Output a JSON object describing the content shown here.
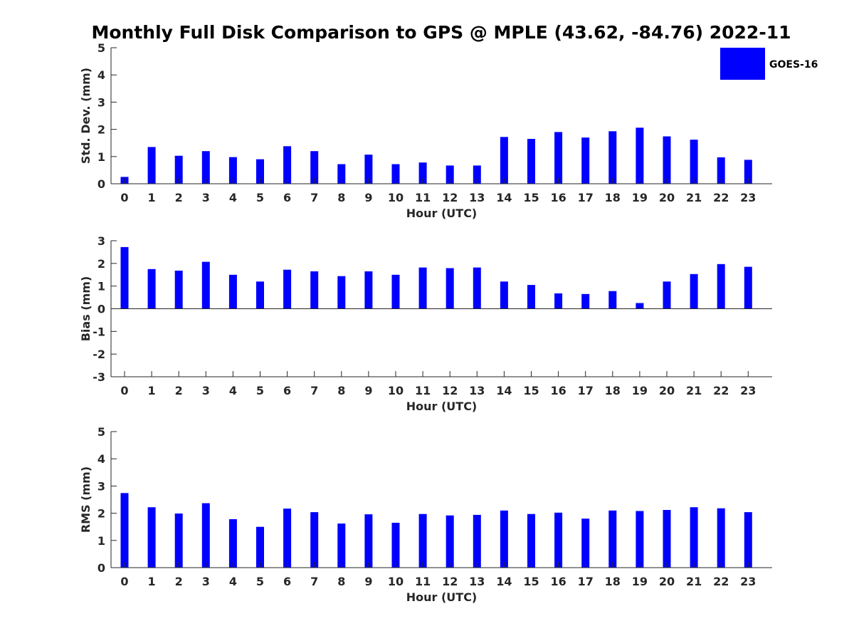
{
  "chart_data": {
    "type": "bar",
    "title": "Monthly Full Disk Comparison to GPS @ MPLE (43.62, -84.76) 2022-11",
    "legend": {
      "position": "top-right",
      "entries": [
        "GOES-16"
      ]
    },
    "colors": {
      "series": "#0000ff",
      "axis": "#262626",
      "text": "#262626"
    },
    "categories": [
      "0",
      "1",
      "2",
      "3",
      "4",
      "5",
      "6",
      "7",
      "8",
      "9",
      "10",
      "11",
      "12",
      "13",
      "14",
      "15",
      "16",
      "17",
      "18",
      "19",
      "20",
      "21",
      "22",
      "23"
    ],
    "subplots": [
      {
        "id": "stddev",
        "xlabel": "Hour (UTC)",
        "ylabel": "Std. Dev. (mm)",
        "ylim": [
          0,
          5
        ],
        "yticks": [
          0,
          1,
          2,
          3,
          4,
          5
        ],
        "series": [
          {
            "name": "GOES-16",
            "values": [
              0.25,
              1.35,
              1.03,
              1.2,
              0.98,
              0.9,
              1.38,
              1.2,
              0.72,
              1.07,
              0.72,
              0.78,
              0.67,
              0.67,
              1.72,
              1.65,
              1.9,
              1.7,
              1.93,
              2.06,
              1.74,
              1.62,
              0.97,
              0.88
            ]
          }
        ]
      },
      {
        "id": "bias",
        "xlabel": "Hour (UTC)",
        "ylabel": "Bias (mm)",
        "ylim": [
          -3,
          3
        ],
        "yticks": [
          -3,
          -2,
          -1,
          0,
          1,
          2,
          3
        ],
        "series": [
          {
            "name": "GOES-16",
            "values": [
              2.72,
              1.75,
              1.68,
              2.07,
              1.5,
              1.2,
              1.72,
              1.65,
              1.44,
              1.65,
              1.5,
              1.82,
              1.79,
              1.82,
              1.2,
              1.05,
              0.68,
              0.65,
              0.78,
              0.25,
              1.2,
              1.53,
              1.97,
              1.85
            ]
          }
        ]
      },
      {
        "id": "rms",
        "xlabel": "Hour (UTC)",
        "ylabel": "RMS (mm)",
        "ylim": [
          0,
          5
        ],
        "yticks": [
          0,
          1,
          2,
          3,
          4,
          5
        ],
        "series": [
          {
            "name": "GOES-16",
            "values": [
              2.74,
              2.22,
              1.99,
              2.37,
              1.78,
              1.5,
              2.17,
              2.04,
              1.62,
              1.96,
              1.65,
              1.97,
              1.92,
              1.94,
              2.1,
              1.97,
              2.02,
              1.8,
              2.1,
              2.08,
              2.12,
              2.22,
              2.18,
              2.04
            ]
          }
        ]
      }
    ]
  }
}
